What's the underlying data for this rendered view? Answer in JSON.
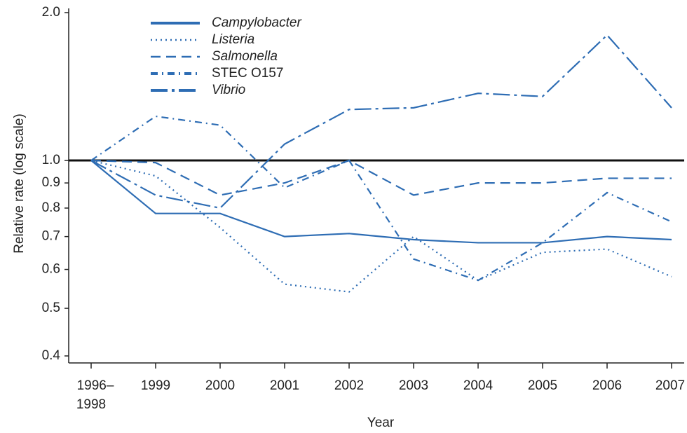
{
  "chart_data": {
    "type": "line",
    "x_label": "Year",
    "y_label": "Relative rate (log scale)",
    "categories": [
      "1996–1998",
      "1999",
      "2000",
      "2001",
      "2002",
      "2003",
      "2004",
      "2005",
      "2006",
      "2007"
    ],
    "series": [
      {
        "name": "Campylobacter",
        "color": "#2e6db4",
        "values": [
          1.0,
          0.78,
          0.78,
          0.7,
          0.71,
          0.69,
          0.68,
          0.68,
          0.7,
          0.69
        ]
      },
      {
        "name": "Listeria",
        "color": "#2e6db4",
        "values": [
          1.0,
          0.93,
          0.73,
          0.56,
          0.54,
          0.7,
          0.57,
          0.65,
          0.66,
          0.58
        ]
      },
      {
        "name": "Salmonella",
        "color": "#2e6db4",
        "values": [
          1.0,
          0.99,
          0.85,
          0.9,
          1.0,
          0.85,
          0.9,
          0.9,
          0.92,
          0.92
        ]
      },
      {
        "name": "STEC O157",
        "color": "#2e6db4",
        "values": [
          1.0,
          1.23,
          1.18,
          0.88,
          1.0,
          0.63,
          0.57,
          0.68,
          0.86,
          0.75
        ]
      },
      {
        "name": "Vibrio",
        "color": "#2e6db4",
        "values": [
          1.0,
          0.85,
          0.8,
          1.08,
          1.27,
          1.28,
          1.37,
          1.35,
          1.8,
          1.28
        ]
      }
    ],
    "log_scale": true,
    "reference_line": 1,
    "ylim": [
      0.4,
      2.0
    ],
    "yticks": [
      0.4,
      0.5,
      0.6,
      0.7,
      0.8,
      0.9,
      {
        "value": 1,
        "label": "1.0"
      },
      {
        "value": 2,
        "label": "2.0"
      }
    ],
    "legend": "top-left"
  }
}
